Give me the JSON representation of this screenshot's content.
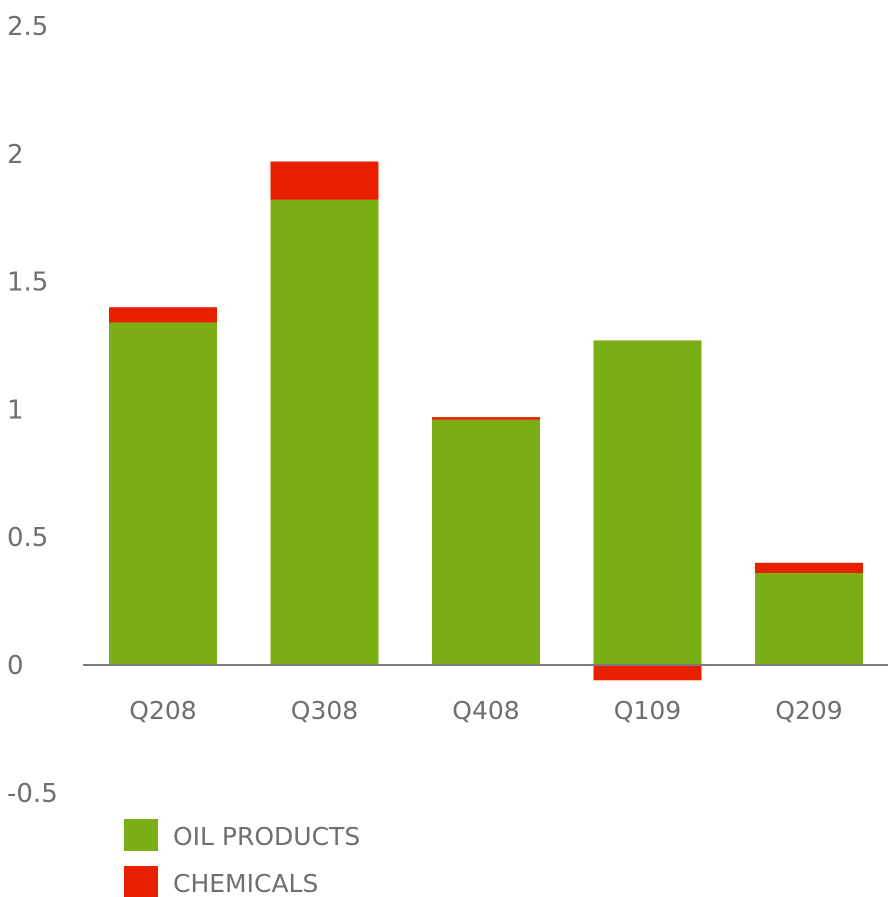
{
  "chart_data": {
    "type": "bar",
    "stacked": true,
    "categories": [
      "Q208",
      "Q308",
      "Q408",
      "Q109",
      "Q209"
    ],
    "series": [
      {
        "name": "OIL PRODUCTS",
        "color": "#7aae14",
        "values": [
          1.34,
          1.82,
          0.96,
          1.27,
          0.36
        ]
      },
      {
        "name": "CHEMICALS",
        "color": "#e82000",
        "values": [
          0.06,
          0.15,
          0.01,
          -0.06,
          0.04
        ]
      }
    ],
    "title": "",
    "xlabel": "",
    "ylabel": "",
    "ylim": [
      -0.5,
      2.5
    ],
    "yticks": [
      "2.5",
      "2",
      "1.5",
      "1",
      "0.5",
      "0",
      "-0.5"
    ],
    "grid": false,
    "legend_position": "bottom-left"
  }
}
